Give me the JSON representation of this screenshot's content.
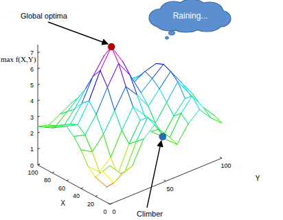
{
  "chart_data": {
    "type": "surface",
    "x_label": "X",
    "y_label": "Y",
    "z_label": "max f(X,Y)",
    "x": [
      0,
      10,
      20,
      30,
      40,
      50,
      60,
      70,
      80,
      90,
      100
    ],
    "y": [
      0,
      10,
      20,
      30,
      40,
      50,
      60,
      70,
      80,
      90,
      100
    ],
    "z": [
      [
        2.4,
        1.6,
        1.8,
        3.2,
        3.8,
        2.6,
        2.0,
        3.0,
        3.6,
        2.8,
        2.2
      ],
      [
        1.8,
        0.8,
        1.2,
        2.8,
        4.0,
        3.0,
        2.2,
        3.4,
        4.2,
        3.2,
        2.4
      ],
      [
        1.2,
        0.3,
        0.8,
        2.4,
        3.6,
        2.6,
        2.0,
        3.0,
        3.8,
        3.0,
        2.2
      ],
      [
        1.6,
        1.0,
        1.6,
        3.0,
        4.2,
        3.4,
        2.6,
        3.6,
        4.6,
        3.6,
        2.6
      ],
      [
        2.4,
        2.0,
        2.8,
        4.0,
        5.2,
        4.4,
        3.4,
        4.2,
        5.0,
        4.0,
        3.0
      ],
      [
        3.0,
        2.8,
        3.8,
        5.2,
        6.4,
        5.4,
        4.0,
        4.6,
        5.2,
        4.2,
        3.2
      ],
      [
        3.4,
        3.2,
        4.4,
        6.0,
        7.2,
        6.0,
        4.4,
        4.8,
        5.0,
        4.0,
        3.2
      ],
      [
        3.2,
        3.0,
        4.0,
        5.4,
        6.4,
        5.4,
        4.0,
        4.2,
        4.4,
        3.6,
        3.0
      ],
      [
        2.8,
        2.6,
        3.4,
        4.4,
        5.0,
        4.4,
        3.4,
        3.6,
        3.8,
        3.2,
        2.8
      ],
      [
        2.6,
        2.4,
        3.0,
        3.6,
        4.0,
        3.6,
        3.0,
        3.2,
        3.4,
        3.0,
        2.6
      ],
      [
        2.4,
        2.2,
        2.6,
        3.0,
        3.2,
        3.0,
        2.8,
        3.0,
        3.0,
        2.8,
        2.4
      ]
    ],
    "xlim": [
      0,
      100
    ],
    "ylim": [
      0,
      100
    ],
    "zlim": [
      0,
      7.5
    ],
    "xticks": [
      0,
      20,
      40,
      60,
      80,
      100
    ],
    "yticks": [
      0,
      50,
      100
    ],
    "zticks": [
      0,
      1,
      2,
      3,
      4,
      5,
      6,
      7
    ],
    "grid": false,
    "points": [
      {
        "label": "Global optima",
        "x": 60,
        "y": 40,
        "z": 7.2,
        "color": "#c00000"
      },
      {
        "label": "Climber",
        "x": 20,
        "y": 60,
        "z": 2.0,
        "color": "#1f6fbf"
      }
    ],
    "annotations": [
      {
        "text": "Raining..."
      }
    ]
  }
}
